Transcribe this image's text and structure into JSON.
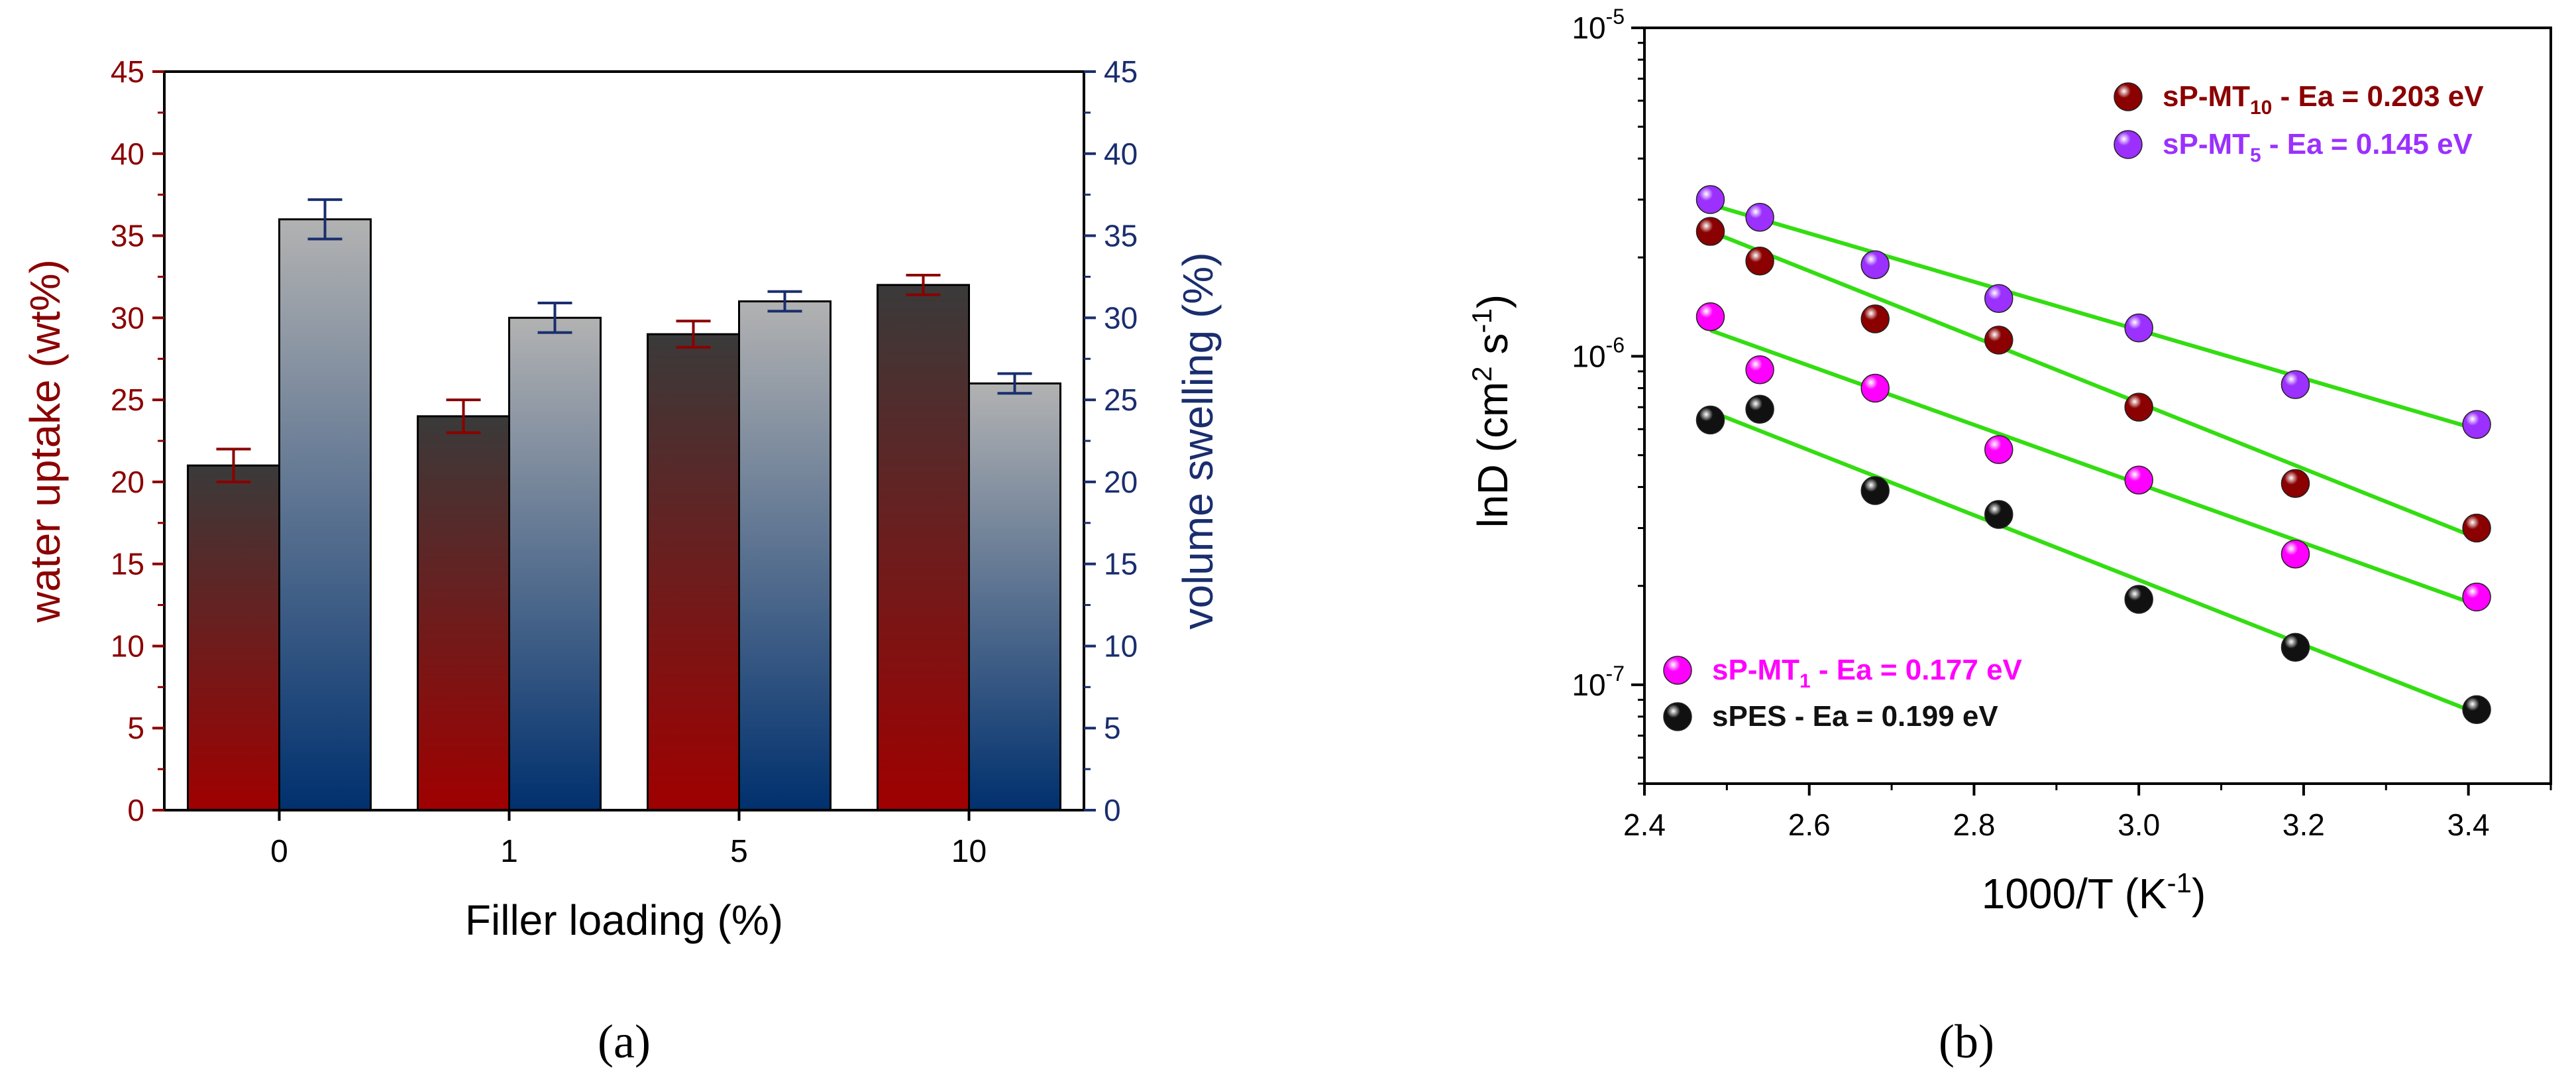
{
  "chart_data": [
    {
      "type": "bar",
      "panel_label": "(a)",
      "xlabel": "Filler loading (%)",
      "ylabel_left": "water uptake (wt%)",
      "ylabel_right": "volume swelling (%)",
      "categories": [
        "0",
        "1",
        "5",
        "10"
      ],
      "ylim": [
        0,
        45
      ],
      "yticks": [
        "0",
        "5",
        "10",
        "15",
        "20",
        "25",
        "30",
        "35",
        "40",
        "45"
      ],
      "series": [
        {
          "name": "water uptake",
          "axis": "left",
          "values": [
            21,
            24,
            29,
            32
          ],
          "errors": [
            1.0,
            1.0,
            0.8,
            0.6
          ],
          "color_top": "#3a3a3a",
          "color_bottom": "#a00000"
        },
        {
          "name": "volume swelling",
          "axis": "right",
          "values": [
            36,
            30,
            31,
            26
          ],
          "errors": [
            1.2,
            0.9,
            0.6,
            0.6
          ],
          "color_top": "#b2b2b2",
          "color_bottom": "#00306e"
        }
      ],
      "colors": {
        "left_axis": "#8b0000",
        "right_axis": "#1a2e6e",
        "frame": "#000000"
      }
    },
    {
      "type": "scatter",
      "panel_label": "(b)",
      "xlabel": "1000/T (K",
      "xlabel_sup": "-1",
      "xlabel_close": ")",
      "ylabel": "lnD (cm",
      "ylabel_sup1": "2",
      "ylabel_mid": " s",
      "ylabel_sup2": "-1",
      "ylabel_close": ")",
      "yscale": "log",
      "xlim": [
        2.4,
        3.5
      ],
      "ylim": [
        5e-08,
        1e-05
      ],
      "xticks": [
        "2.4",
        "2.6",
        "2.8",
        "3.0",
        "3.2",
        "3.4"
      ],
      "yticks": [
        {
          "value": 1e-07,
          "base": "10",
          "exp": "-7"
        },
        {
          "value": 1e-06,
          "base": "10",
          "exp": "-6"
        },
        {
          "value": 1e-05,
          "base": "10",
          "exp": "-5"
        }
      ],
      "fit_color": "#33dd11",
      "series": [
        {
          "name": "sP-MT10",
          "legend_main": "sP-MT",
          "legend_sub": "10",
          "legend_tail": " - Ea = 0.203 eV",
          "color": "#8b0000",
          "x": [
            2.48,
            2.54,
            2.68,
            2.83,
            3.0,
            3.19,
            3.41
          ],
          "y": [
            2.4e-06,
            1.95e-06,
            1.3e-06,
            1.12e-06,
            7e-07,
            4.1e-07,
            3e-07
          ],
          "fit": [
            [
              2.48,
              2.4e-06
            ],
            [
              3.41,
              2.8e-07
            ]
          ]
        },
        {
          "name": "sP-MT5",
          "legend_main": "sP-MT",
          "legend_sub": "5",
          "legend_tail": " - Ea = 0.145 eV",
          "color": "#9b30ff",
          "x": [
            2.48,
            2.54,
            2.68,
            2.83,
            3.0,
            3.19,
            3.41
          ],
          "y": [
            3e-06,
            2.65e-06,
            1.9e-06,
            1.5e-06,
            1.22e-06,
            8.2e-07,
            6.2e-07
          ],
          "fit": [
            [
              2.48,
              2.9e-06
            ],
            [
              3.41,
              6e-07
            ]
          ]
        },
        {
          "name": "sP-MT1",
          "legend_main": "sP-MT",
          "legend_sub": "1",
          "legend_tail": " - Ea = 0.177 eV",
          "color": "#ff00ff",
          "x": [
            2.48,
            2.54,
            2.68,
            2.83,
            3.0,
            3.19,
            3.41
          ],
          "y": [
            1.32e-06,
            9.1e-07,
            8e-07,
            5.2e-07,
            4.2e-07,
            2.5e-07,
            1.85e-07
          ],
          "fit": [
            [
              2.48,
              1.2e-06
            ],
            [
              3.41,
              1.75e-07
            ]
          ]
        },
        {
          "name": "sPES",
          "legend_main": "sPES",
          "legend_sub": "",
          "legend_tail": " - Ea = 0.199 eV",
          "color": "#111111",
          "x": [
            2.48,
            2.54,
            2.68,
            2.83,
            3.0,
            3.19,
            3.41
          ],
          "y": [
            6.4e-07,
            6.9e-07,
            3.9e-07,
            3.3e-07,
            1.82e-07,
            1.3e-07,
            8.4e-08
          ],
          "fit": [
            [
              2.48,
              6.8e-07
            ],
            [
              3.41,
              8.2e-08
            ]
          ]
        }
      ]
    }
  ]
}
